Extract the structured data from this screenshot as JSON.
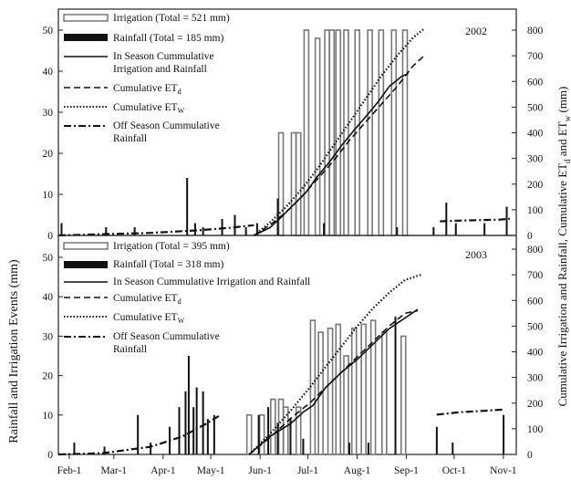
{
  "figure": {
    "y_left_label": "Rainfall and Irrigation Events (mm)",
    "y_right_label": "Cumulative Irrigation and Rainfall, Cumulative ET",
    "y_right_label_tail_1": "d",
    "y_right_label_mid": " and ET",
    "y_right_label_tail_2": "w",
    "y_right_label_unit": " (mm)",
    "x_ticks": [
      "Feb-1",
      "Mar-1",
      "Apr-1",
      "May-1",
      "Jun-1",
      "Jul-1",
      "Aug-1",
      "Sep-1",
      "Oct-1",
      "Nov-1"
    ]
  },
  "chart_data": [
    {
      "type": "bar",
      "panel_label": "2002",
      "x_unit": "day of year",
      "xlim": [
        32,
        320
      ],
      "ylim_left": [
        0,
        50
      ],
      "ylim_right": [
        0,
        800
      ],
      "left_ticks": [
        "0",
        "10",
        "20",
        "30",
        "40",
        "50"
      ],
      "right_ticks": [
        "0",
        "100",
        "200",
        "300",
        "400",
        "500",
        "600",
        "700",
        "800"
      ],
      "legend": {
        "irrigation": "Irrigation (Total = 521 mm)",
        "rainfall": "Rainfall  (Total = 185 mm)",
        "in_season_line1": "In Season Cummulative",
        "in_season_line2": "Irrigation and Rainfall",
        "etd_main": "Cumulative ET",
        "etd_sub": "d",
        "etw_main": "Cumulative ET",
        "etw_sub": "W",
        "off_season_line1": "Off Season Cummulative",
        "off_season_line2": "Rainfall"
      },
      "irrigation_bars": [
        {
          "x": 172,
          "y": 25
        },
        {
          "x": 180,
          "y": 25
        },
        {
          "x": 183,
          "y": 25
        },
        {
          "x": 188,
          "y": 50
        },
        {
          "x": 195,
          "y": 48
        },
        {
          "x": 201,
          "y": 50
        },
        {
          "x": 204,
          "y": 50
        },
        {
          "x": 208,
          "y": 50
        },
        {
          "x": 213,
          "y": 50
        },
        {
          "x": 220,
          "y": 50
        },
        {
          "x": 228,
          "y": 50
        },
        {
          "x": 235,
          "y": 50
        },
        {
          "x": 243,
          "y": 50
        },
        {
          "x": 250,
          "y": 50
        }
      ],
      "rainfall_bars": [
        {
          "x": 34,
          "y": 3
        },
        {
          "x": 62,
          "y": 2
        },
        {
          "x": 80,
          "y": 2
        },
        {
          "x": 113,
          "y": 14
        },
        {
          "x": 118,
          "y": 3
        },
        {
          "x": 123,
          "y": 2
        },
        {
          "x": 135,
          "y": 4
        },
        {
          "x": 143,
          "y": 5
        },
        {
          "x": 150,
          "y": 2
        },
        {
          "x": 157,
          "y": 3
        },
        {
          "x": 170,
          "y": 9
        },
        {
          "x": 199,
          "y": 3
        },
        {
          "x": 245,
          "y": 2
        },
        {
          "x": 268,
          "y": 2
        },
        {
          "x": 276,
          "y": 8
        },
        {
          "x": 282,
          "y": 3
        },
        {
          "x": 300,
          "y": 3
        },
        {
          "x": 314,
          "y": 7
        }
      ],
      "cumulative_in_season": {
        "x": [
          155,
          165,
          172,
          180,
          188,
          195,
          203,
          210,
          218,
          225,
          233,
          240,
          248,
          252
        ],
        "y": [
          0,
          30,
          70,
          120,
          170,
          230,
          290,
          350,
          410,
          460,
          520,
          580,
          620,
          630
        ]
      },
      "cumulative_etd": {
        "x": [
          155,
          165,
          175,
          185,
          195,
          205,
          215,
          225,
          235,
          245,
          255,
          262
        ],
        "y": [
          0,
          40,
          90,
          150,
          220,
          290,
          370,
          440,
          510,
          580,
          660,
          700
        ]
      },
      "cumulative_etw": {
        "x": [
          155,
          165,
          175,
          185,
          195,
          205,
          215,
          225,
          235,
          245,
          255,
          262
        ],
        "y": [
          0,
          50,
          110,
          180,
          260,
          350,
          440,
          530,
          620,
          700,
          770,
          805
        ]
      },
      "off_season_rainfall": [
        {
          "x": [
            32,
            60,
            90,
            120,
            140,
            155
          ],
          "y": [
            0,
            5,
            10,
            20,
            30,
            40
          ]
        },
        {
          "x": [
            272,
            285,
            300,
            310,
            316
          ],
          "y": [
            55,
            58,
            60,
            62,
            65
          ]
        }
      ]
    },
    {
      "type": "bar",
      "panel_label": "2003",
      "x_unit": "day of year",
      "xlim": [
        32,
        320
      ],
      "ylim_left": [
        0,
        50
      ],
      "ylim_right": [
        0,
        800
      ],
      "left_ticks": [
        "0",
        "10",
        "20",
        "30",
        "40",
        "50"
      ],
      "right_ticks": [
        "0",
        "100",
        "200",
        "300",
        "400",
        "500",
        "600",
        "700",
        "800"
      ],
      "legend": {
        "irrigation": "Irrigation (Total =  395 mm)",
        "rainfall": "Rainfall  (Total = 318 mm)",
        "in_season": "In Season Cummulative Irrigation and Rainfall",
        "etd_main": "Cumulative ET",
        "etd_sub": "d",
        "etw_main": "Cumulative ET",
        "etw_sub": "W",
        "off_season_line1": "Off Season Cummulative",
        "off_season_line2": "Rainfall"
      },
      "irrigation_bars": [
        {
          "x": 152,
          "y": 10
        },
        {
          "x": 160,
          "y": 10
        },
        {
          "x": 167,
          "y": 14
        },
        {
          "x": 172,
          "y": 14
        },
        {
          "x": 175,
          "y": 12
        },
        {
          "x": 183,
          "y": 12
        },
        {
          "x": 192,
          "y": 34
        },
        {
          "x": 197,
          "y": 31
        },
        {
          "x": 203,
          "y": 32
        },
        {
          "x": 208,
          "y": 33
        },
        {
          "x": 213,
          "y": 25
        },
        {
          "x": 218,
          "y": 32
        },
        {
          "x": 224,
          "y": 33
        },
        {
          "x": 230,
          "y": 34
        },
        {
          "x": 237,
          "y": 31
        },
        {
          "x": 249,
          "y": 30
        }
      ],
      "rainfall_bars": [
        {
          "x": 42,
          "y": 3
        },
        {
          "x": 61,
          "y": 2
        },
        {
          "x": 82,
          "y": 10
        },
        {
          "x": 90,
          "y": 3
        },
        {
          "x": 102,
          "y": 7
        },
        {
          "x": 108,
          "y": 12
        },
        {
          "x": 112,
          "y": 16
        },
        {
          "x": 114,
          "y": 25
        },
        {
          "x": 117,
          "y": 12
        },
        {
          "x": 119,
          "y": 17
        },
        {
          "x": 123,
          "y": 16
        },
        {
          "x": 126,
          "y": 9
        },
        {
          "x": 130,
          "y": 10
        },
        {
          "x": 158,
          "y": 10
        },
        {
          "x": 164,
          "y": 12
        },
        {
          "x": 170,
          "y": 8
        },
        {
          "x": 178,
          "y": 9
        },
        {
          "x": 186,
          "y": 4
        },
        {
          "x": 215,
          "y": 3
        },
        {
          "x": 227,
          "y": 3
        },
        {
          "x": 244,
          "y": 35
        },
        {
          "x": 270,
          "y": 7
        },
        {
          "x": 280,
          "y": 3
        },
        {
          "x": 312,
          "y": 10
        }
      ],
      "cumulative_in_season": {
        "x": [
          152,
          165,
          178,
          186,
          192,
          200,
          210,
          220,
          230,
          240,
          252,
          258
        ],
        "y": [
          0,
          70,
          120,
          165,
          190,
          260,
          320,
          370,
          430,
          490,
          540,
          565
        ]
      },
      "cumulative_etd": {
        "x": [
          152,
          165,
          178,
          190,
          200,
          210,
          220,
          230,
          240,
          250,
          258
        ],
        "y": [
          0,
          65,
          140,
          200,
          260,
          320,
          380,
          440,
          500,
          550,
          560
        ]
      },
      "cumulative_etw": {
        "x": [
          152,
          165,
          178,
          190,
          200,
          210,
          220,
          230,
          240,
          250,
          260
        ],
        "y": [
          0,
          80,
          170,
          260,
          340,
          420,
          500,
          570,
          630,
          680,
          700
        ]
      },
      "off_season_rainfall": [
        {
          "x": [
            32,
            60,
            90,
            110,
            125,
            133
          ],
          "y": [
            0,
            5,
            30,
            70,
            120,
            150
          ]
        },
        {
          "x": [
            270,
            285,
            300,
            312
          ],
          "y": [
            155,
            165,
            170,
            175
          ]
        }
      ]
    }
  ]
}
